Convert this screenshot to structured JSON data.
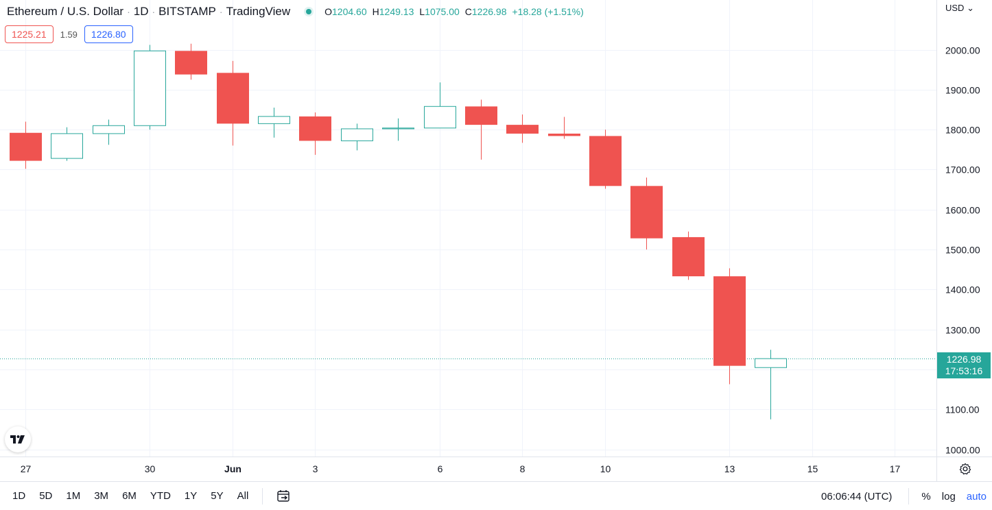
{
  "header": {
    "symbol": "Ethereum / U.S. Dollar",
    "interval": "1D",
    "exchange": "BITSTAMP",
    "platform": "TradingView",
    "separator": "·",
    "ohlc": {
      "o_key": "O",
      "o": "1204.60",
      "h_key": "H",
      "h": "1249.13",
      "l_key": "L",
      "l": "1075.00",
      "c_key": "C",
      "c": "1226.98",
      "change": "+18.28 (+1.51%)"
    }
  },
  "spread": {
    "bid": "1225.21",
    "spread": "1.59",
    "ask": "1226.80"
  },
  "currency": "USD",
  "last_price": {
    "value": "1226.98",
    "countdown": "17:53:16"
  },
  "toolbar": {
    "ranges": [
      "1D",
      "5D",
      "1M",
      "3M",
      "6M",
      "YTD",
      "1Y",
      "5Y",
      "All"
    ],
    "clock": "06:06:44 (UTC)",
    "percent": "%",
    "log": "log",
    "auto": "auto"
  },
  "colors": {
    "up": "#26a69a",
    "down": "#ef5350",
    "grid": "#f0f3fa",
    "bid": "#ef5350",
    "ask": "#2962ff"
  },
  "icons": {
    "logo": "tradingview-logo-icon",
    "settings": "gear-icon",
    "date_range": "calendar-goto-icon"
  },
  "chart_data": {
    "type": "candlestick",
    "ylim": [
      980,
      2030
    ],
    "y_ticks": [
      "1000.00",
      "1100.00",
      "1200.00",
      "1300.00",
      "1400.00",
      "1500.00",
      "1600.00",
      "1700.00",
      "1800.00",
      "1900.00",
      "2000.00"
    ],
    "x_ticks": [
      {
        "label": "27",
        "index": 0
      },
      {
        "label": "30",
        "index": 3
      },
      {
        "label": "Jun",
        "index": 5
      },
      {
        "label": "3",
        "index": 7
      },
      {
        "label": "6",
        "index": 10
      },
      {
        "label": "8",
        "index": 12
      },
      {
        "label": "10",
        "index": 14
      },
      {
        "label": "13",
        "index": 17
      },
      {
        "label": "15",
        "index": 19
      },
      {
        "label": "17",
        "index": 21
      }
    ],
    "candles": [
      {
        "o": 1792,
        "h": 1820,
        "l": 1702,
        "c": 1722
      },
      {
        "o": 1728,
        "h": 1806,
        "l": 1722,
        "c": 1790
      },
      {
        "o": 1790,
        "h": 1825,
        "l": 1762,
        "c": 1810
      },
      {
        "o": 1810,
        "h": 2012,
        "l": 1800,
        "c": 1997
      },
      {
        "o": 1997,
        "h": 2015,
        "l": 1925,
        "c": 1938
      },
      {
        "o": 1942,
        "h": 1972,
        "l": 1760,
        "c": 1815
      },
      {
        "o": 1815,
        "h": 1855,
        "l": 1780,
        "c": 1833
      },
      {
        "o": 1833,
        "h": 1843,
        "l": 1737,
        "c": 1772
      },
      {
        "o": 1772,
        "h": 1815,
        "l": 1748,
        "c": 1802
      },
      {
        "o": 1802,
        "h": 1828,
        "l": 1772,
        "c": 1804
      },
      {
        "o": 1804,
        "h": 1918,
        "l": 1804,
        "c": 1858
      },
      {
        "o": 1858,
        "h": 1875,
        "l": 1725,
        "c": 1812
      },
      {
        "o": 1812,
        "h": 1838,
        "l": 1767,
        "c": 1790
      },
      {
        "o": 1790,
        "h": 1832,
        "l": 1777,
        "c": 1784
      },
      {
        "o": 1784,
        "h": 1800,
        "l": 1652,
        "c": 1659
      },
      {
        "o": 1659,
        "h": 1680,
        "l": 1500,
        "c": 1528
      },
      {
        "o": 1531,
        "h": 1545,
        "l": 1424,
        "c": 1433
      },
      {
        "o": 1433,
        "h": 1453,
        "l": 1163,
        "c": 1209
      },
      {
        "o": 1204.6,
        "h": 1249.13,
        "l": 1075,
        "c": 1226.98
      }
    ],
    "last_price": 1226.98
  }
}
